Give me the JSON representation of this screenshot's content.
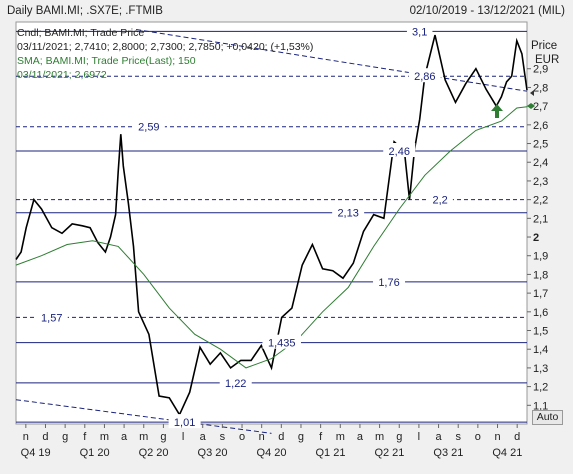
{
  "header": {
    "title": "Daily BAMI.MI; .SX7E; .FTMIB",
    "date_range": "02/10/2019 - 13/12/2021 (MIL)"
  },
  "legend": {
    "line1": "Cndl; BAMI.MI; Trade Price",
    "line2": "03/11/2021; 2,7410; 2,8000; 2,7300; 2,7850; +0,0420; (+1,53%)",
    "line3": "SMA; BAMI.MI; Trade Price(Last); 150",
    "line4": "03/11/2021; 2,6972"
  },
  "axis": {
    "price_label_1": "Price",
    "price_label_2": "EUR",
    "auto_label": "Auto"
  },
  "colors": {
    "background": "#ffffff",
    "price": "#000000",
    "sma": "#2e7d32",
    "level_line": "#1a237e",
    "trend_line": "#1a237e",
    "up_arrow": "#2e7d32"
  },
  "chart_data": {
    "type": "line",
    "x_ticks_month": [
      "n",
      "d",
      "g",
      "f",
      "m",
      "a",
      "m",
      "g",
      "l",
      "a",
      "s",
      "o",
      "n",
      "d",
      "g",
      "f",
      "m",
      "a",
      "m",
      "g",
      "l",
      "a",
      "s",
      "o",
      "n",
      "d"
    ],
    "x_ticks_quarter": [
      "Q4 19",
      "Q1 20",
      "Q2 20",
      "Q3 20",
      "Q4 20",
      "Q1 21",
      "Q2 21",
      "Q3 21",
      "Q4 21"
    ],
    "y_ticks": [
      "1,1",
      "1,2",
      "1,3",
      "1,4",
      "1,5",
      "1,6",
      "1,7",
      "1,8",
      "1,9",
      "2",
      "2,1",
      "2,2",
      "2,3",
      "2,4",
      "2,5",
      "2,6",
      "2,7",
      "2,8",
      "2,9"
    ],
    "ylim": [
      1.0,
      3.15
    ],
    "levels": [
      {
        "value": 3.1,
        "label": "3,1",
        "style": "solid"
      },
      {
        "value": 2.86,
        "label": "2,86",
        "style": "dashed"
      },
      {
        "value": 2.59,
        "label": "2,59",
        "style": "dashed"
      },
      {
        "value": 2.46,
        "label": "2,46",
        "style": "solid"
      },
      {
        "value": 2.2,
        "label": "2,2",
        "style": "dashed"
      },
      {
        "value": 2.13,
        "label": "2,13",
        "style": "solid"
      },
      {
        "value": 1.76,
        "label": "1,76",
        "style": "solid"
      },
      {
        "value": 1.57,
        "label": "1,57",
        "style": "dashed"
      },
      {
        "value": 1.435,
        "label": "1,435",
        "style": "solid"
      },
      {
        "value": 1.22,
        "label": "1,22",
        "style": "solid"
      },
      {
        "value": 1.01,
        "label": "1,01",
        "style": "solid"
      }
    ],
    "trendlines": [
      {
        "from": [
          0.235,
          3.11
        ],
        "to": [
          1.0,
          2.78
        ]
      },
      {
        "from": [
          0.0,
          1.13
        ],
        "to": [
          0.5,
          0.95
        ]
      }
    ],
    "series": [
      {
        "name": "BAMI.MI",
        "x": [
          0,
          0.01,
          0.02,
          0.035,
          0.05,
          0.07,
          0.09,
          0.11,
          0.13,
          0.145,
          0.16,
          0.175,
          0.185,
          0.195,
          0.2,
          0.205,
          0.21,
          0.22,
          0.23,
          0.24,
          0.26,
          0.28,
          0.3,
          0.32,
          0.34,
          0.36,
          0.38,
          0.4,
          0.42,
          0.44,
          0.46,
          0.48,
          0.5,
          0.52,
          0.54,
          0.56,
          0.58,
          0.6,
          0.62,
          0.64,
          0.66,
          0.68,
          0.7,
          0.72,
          0.74,
          0.76,
          0.77,
          0.78,
          0.79,
          0.8,
          0.82,
          0.84,
          0.86,
          0.88,
          0.9,
          0.92,
          0.94,
          0.95,
          0.96,
          0.97,
          0.98,
          0.99,
          1.0
        ],
        "y": [
          1.88,
          1.92,
          2.05,
          2.2,
          2.15,
          2.05,
          2.02,
          2.07,
          2.06,
          2.05,
          1.97,
          1.92,
          2.0,
          2.12,
          2.35,
          2.55,
          2.38,
          2.18,
          1.95,
          1.6,
          1.48,
          1.15,
          1.14,
          1.05,
          1.17,
          1.41,
          1.32,
          1.38,
          1.3,
          1.34,
          1.34,
          1.42,
          1.3,
          1.57,
          1.62,
          1.85,
          1.96,
          1.83,
          1.82,
          1.78,
          1.86,
          2.03,
          2.12,
          2.1,
          2.51,
          2.46,
          2.2,
          2.47,
          2.63,
          2.86,
          3.08,
          2.84,
          2.72,
          2.82,
          2.9,
          2.79,
          2.7,
          2.75,
          2.83,
          2.86,
          3.05,
          2.98,
          2.785
        ]
      },
      {
        "name": "SMA 150",
        "x": [
          0,
          0.05,
          0.1,
          0.15,
          0.2,
          0.25,
          0.3,
          0.35,
          0.4,
          0.45,
          0.5,
          0.55,
          0.6,
          0.65,
          0.7,
          0.75,
          0.8,
          0.85,
          0.9,
          0.95,
          0.98,
          1.0
        ],
        "y": [
          1.85,
          1.9,
          1.96,
          1.98,
          1.95,
          1.8,
          1.62,
          1.48,
          1.4,
          1.3,
          1.35,
          1.45,
          1.6,
          1.73,
          1.95,
          2.15,
          2.33,
          2.46,
          2.57,
          2.62,
          2.69,
          2.6972
        ]
      }
    ]
  }
}
